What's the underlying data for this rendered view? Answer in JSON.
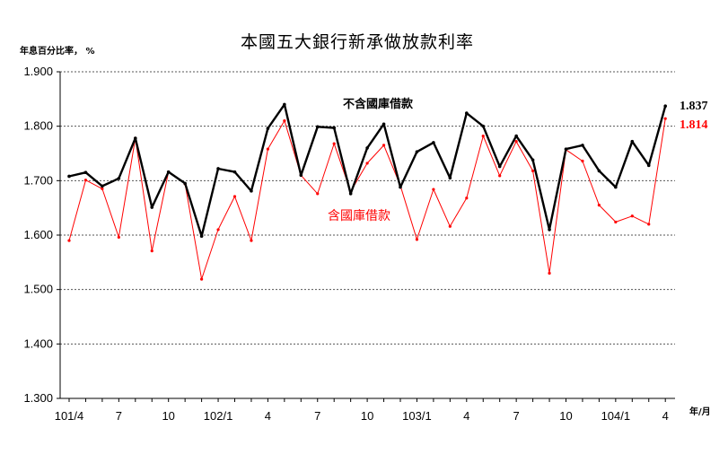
{
  "chart_data": {
    "type": "line",
    "title": "本國五大銀行新承做放款利率",
    "ylabel": "年息百分比率， %",
    "xlabel": "年/月",
    "ylim": [
      1.3,
      1.9
    ],
    "yticks": [
      "1.300",
      "1.400",
      "1.500",
      "1.600",
      "1.700",
      "1.800",
      "1.900"
    ],
    "grid": true,
    "x_tick_labels": [
      {
        "index": 0,
        "label": "101/4"
      },
      {
        "index": 3,
        "label": "7"
      },
      {
        "index": 6,
        "label": "10"
      },
      {
        "index": 9,
        "label": "102/1"
      },
      {
        "index": 12,
        "label": "4"
      },
      {
        "index": 15,
        "label": "7"
      },
      {
        "index": 18,
        "label": "10"
      },
      {
        "index": 21,
        "label": "103/1"
      },
      {
        "index": 24,
        "label": "4"
      },
      {
        "index": 27,
        "label": "7"
      },
      {
        "index": 30,
        "label": "10"
      },
      {
        "index": 33,
        "label": "104/1"
      },
      {
        "index": 36,
        "label": "4"
      }
    ],
    "series": [
      {
        "name": "不含國庫借款",
        "color": "#000000",
        "end_label": "1.837",
        "values": [
          1.708,
          1.715,
          1.69,
          1.704,
          1.778,
          1.651,
          1.716,
          1.695,
          1.598,
          1.722,
          1.716,
          1.681,
          1.796,
          1.84,
          1.71,
          1.799,
          1.797,
          1.676,
          1.76,
          1.804,
          1.688,
          1.753,
          1.77,
          1.705,
          1.824,
          1.8,
          1.726,
          1.782,
          1.738,
          1.61,
          1.758,
          1.765,
          1.718,
          1.688,
          1.772,
          1.728,
          1.837
        ]
      },
      {
        "name": "含國庫借款",
        "color": "#ff0000",
        "end_label": "1.814",
        "values": [
          1.59,
          1.701,
          1.685,
          1.596,
          1.778,
          1.571,
          1.716,
          1.694,
          1.519,
          1.61,
          1.671,
          1.59,
          1.758,
          1.81,
          1.71,
          1.676,
          1.768,
          1.68,
          1.732,
          1.765,
          1.691,
          1.592,
          1.684,
          1.616,
          1.668,
          1.782,
          1.709,
          1.772,
          1.718,
          1.53,
          1.757,
          1.736,
          1.655,
          1.624,
          1.635,
          1.62,
          1.814
        ]
      }
    ]
  }
}
